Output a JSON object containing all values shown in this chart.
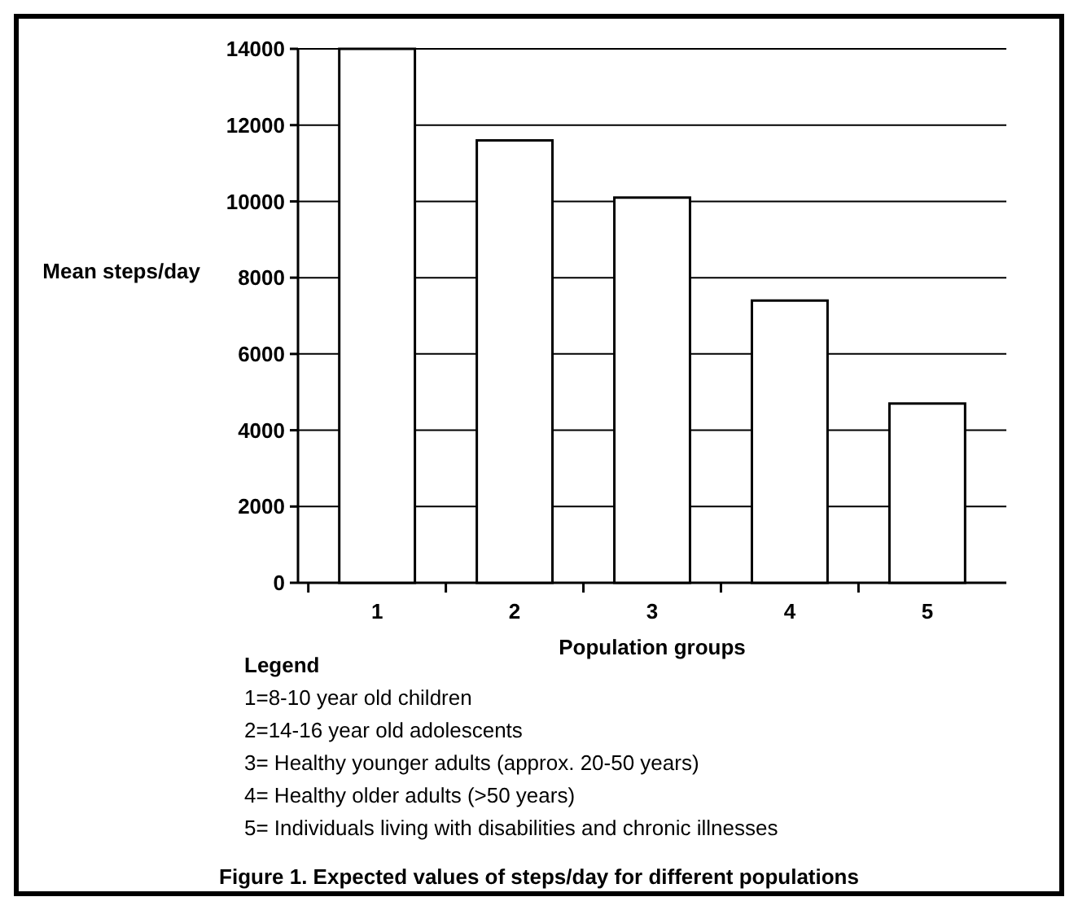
{
  "chart_data": {
    "type": "bar",
    "title": "Figure 1. Expected values of steps/day for different populations",
    "xlabel": "Population groups",
    "ylabel": "Mean steps/day",
    "categories": [
      "1",
      "2",
      "3",
      "4",
      "5"
    ],
    "values": [
      14000,
      11600,
      10100,
      7400,
      4700
    ],
    "color": "#ffffff",
    "ylim": [
      0,
      14000
    ],
    "yticks": [
      0,
      2000,
      4000,
      6000,
      8000,
      10000,
      12000,
      14000
    ],
    "grid": "y",
    "legend_title": "Legend",
    "annotations": [
      "1=8-10 year old children",
      "2=14-16 year old adolescents",
      "3= Healthy younger adults (approx. 20-50 years)",
      "4= Healthy older adults (>50 years)",
      "5= Individuals living with disabilities and chronic illnesses"
    ]
  }
}
